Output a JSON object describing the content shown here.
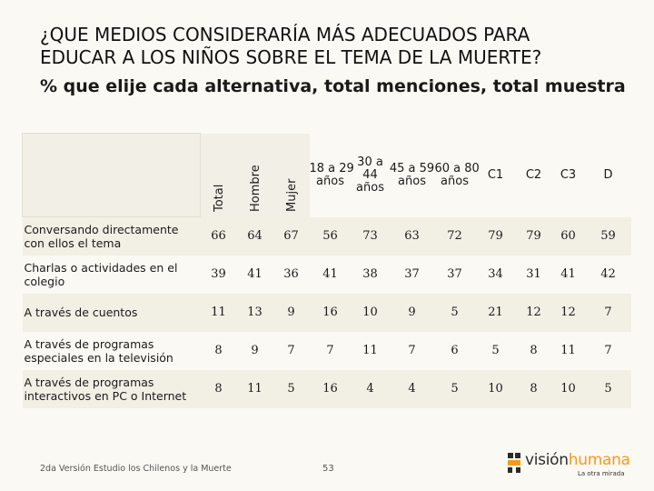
{
  "title": {
    "line1": "¿QUE MEDIOS CONSIDERARÍA MÁS ADECUADOS PARA",
    "line2": "EDUCAR A LOS NIÑOS SOBRE EL TEMA DE LA MUERTE?"
  },
  "subtitle": "% que elije cada alternativa, total menciones,  total muestra",
  "table": {
    "headers": {
      "total": "Total",
      "hombre": "Hombre",
      "mujer": "Mujer",
      "age1": [
        "18 a 29",
        "años"
      ],
      "age2": [
        "30 a",
        "44",
        "años"
      ],
      "age3": [
        "45 a 59",
        "años"
      ],
      "age4": [
        "60 a 80",
        "años"
      ],
      "c1": "C1",
      "c2": "C2",
      "c3": "C3",
      "d": "D"
    },
    "rows": [
      {
        "label": "Conversando directamente con ellos el tema",
        "values": [
          "66",
          "64",
          "67",
          "56",
          "73",
          "63",
          "72",
          "79",
          "79",
          "60",
          "59"
        ]
      },
      {
        "label": "Charlas o actividades en el colegio",
        "values": [
          "39",
          "41",
          "36",
          "41",
          "38",
          "37",
          "37",
          "34",
          "31",
          "41",
          "42"
        ]
      },
      {
        "label": "A través de cuentos",
        "values": [
          "11",
          "13",
          "9",
          "16",
          "10",
          "9",
          "5",
          "21",
          "12",
          "12",
          "7"
        ]
      },
      {
        "label": "A través de programas especiales en la televisión",
        "values": [
          "8",
          "9",
          "7",
          "7",
          "11",
          "7",
          "6",
          "5",
          "8",
          "11",
          "7"
        ]
      },
      {
        "label": "A través de programas interactivos en PC o Internet",
        "values": [
          "8",
          "11",
          "5",
          "16",
          "4",
          "4",
          "5",
          "10",
          "8",
          "10",
          "5"
        ]
      }
    ]
  },
  "footer": {
    "source": "2da Versión Estudio los Chilenos y la Muerte",
    "page": "53"
  },
  "logo": {
    "part1": "visión",
    "part2": "humana",
    "tagline": "La otra mirada",
    "accent_color": "#f39a1e",
    "icon": "logo-figure-icon"
  }
}
